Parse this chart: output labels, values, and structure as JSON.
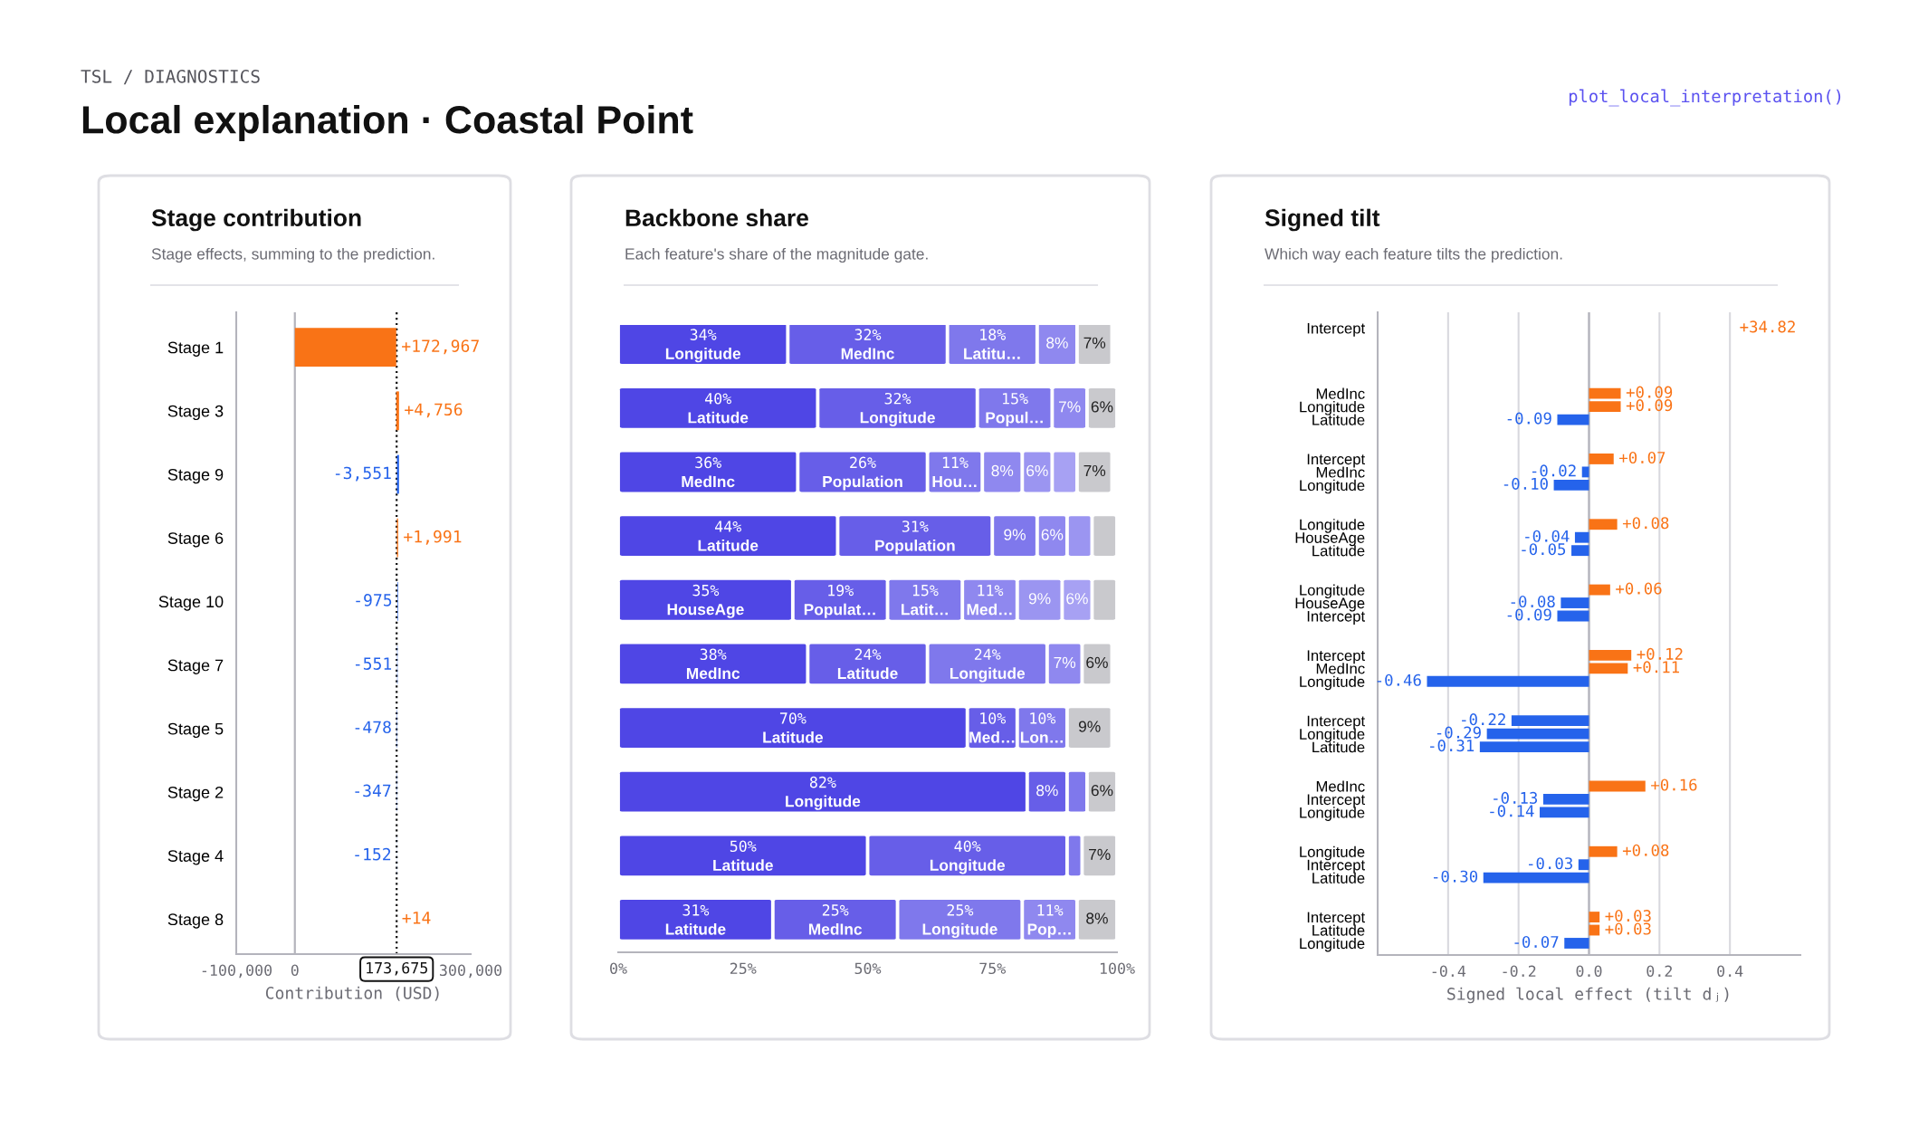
{
  "chart_data": [
    {
      "type": "bar",
      "orientation": "horizontal",
      "title": "Stage contribution",
      "subtitle": "Stage effects, summing to the prediction.",
      "annotations": [
        "TSL / DIAGNOSTICS",
        "Local explanation · Coastal Point",
        "plot_local_interpretation()"
      ],
      "categories": [
        "Stage 1",
        "Stage 3",
        "Stage 9",
        "Stage 6",
        "Stage 10",
        "Stage 7",
        "Stage 5",
        "Stage 2",
        "Stage 4",
        "Stage 8"
      ],
      "values": [
        172967,
        4756,
        -3551,
        1991,
        -975,
        -551,
        -478,
        -347,
        -152,
        14
      ],
      "base": [
        0,
        172967,
        177723,
        174172,
        176163,
        175188,
        174637,
        174159,
        173812,
        173660
      ],
      "colors": [
        "#f97316",
        "#f97316",
        "#2563eb",
        "#f97316",
        "#2563eb",
        "#2563eb",
        "#2563eb",
        "#2563eb",
        "#2563eb",
        "#f97316"
      ],
      "value_labels": [
        "+172,967",
        "+4,756",
        "-3,551",
        "+1,991",
        "-975",
        "-551",
        "-478",
        "-347",
        "-152",
        "+14"
      ],
      "xlim": [
        -100000,
        300000
      ],
      "xticks": [
        {
          "value": -100000,
          "label": "-100,000"
        },
        0,
        {
          "value": 300000,
          "label": "300,000"
        }
      ],
      "xlabel": "Contribution (USD)",
      "ref_lines": [
        {
          "axis": "x",
          "value": 0,
          "color": "#b4b4bc",
          "line_style": "solid"
        },
        {
          "axis": "x",
          "value": 173675,
          "label": "173,675",
          "color": "#111111",
          "line_style": "dotted"
        }
      ]
    },
    {
      "type": "bar",
      "orientation": "horizontal",
      "stacked": true,
      "title": "Backbone share",
      "subtitle": "Each feature's share of the magnitude gate.",
      "categories": [
        null,
        null,
        null,
        null,
        null,
        null,
        null,
        null,
        null,
        null
      ],
      "series": [
        {
          "color": "#4f46e5",
          "values": [
            34,
            40,
            36,
            44,
            35,
            38,
            70,
            82,
            50,
            31
          ],
          "value_labels": [
            "34%\nLongitude",
            "40%\nLatitude",
            "36%\nMedInc",
            "44%\nLatitude",
            "35%\nHouseAge",
            "38%\nMedInc",
            "70%\nLatitude",
            "82%\nLongitude",
            "50%\nLatitude",
            "31%\nLatitude"
          ]
        },
        {
          "color": "#675ee8",
          "values": [
            32,
            32,
            26,
            31,
            19,
            24,
            10,
            8,
            40,
            25
          ],
          "value_labels": [
            "32%\nMedInc",
            "32%\nLongitude",
            "26%\nPopulation",
            "31%\nPopulation",
            "19%\nPopulat…",
            "24%\nLatitude",
            "10%\nMed…",
            "8%",
            "40%\nLongitude",
            "25%\nMedInc"
          ]
        },
        {
          "color": "#7f78ec",
          "values": [
            18,
            15,
            11,
            9,
            15,
            24,
            10,
            4,
            3,
            25
          ],
          "value_labels": [
            "18%\nLatitu…",
            "15%\nPopul…",
            "11%\nHou…",
            "9%",
            "15%\nLatit…",
            "24%\nLongitude",
            "10%\nLon…",
            null,
            null,
            "25%\nLongitude"
          ]
        },
        {
          "color": "#8f88ef",
          "values": [
            8,
            7,
            8,
            6,
            11,
            7,
            null,
            null,
            null,
            11
          ],
          "value_labels": [
            "8%",
            "7%",
            "8%",
            "6%",
            "11%\nMed…",
            "7%",
            null,
            null,
            null,
            "11%\nPop…"
          ]
        },
        {
          "color": "#9b95f1",
          "values": [
            null,
            null,
            6,
            5,
            9,
            null,
            null,
            null,
            null,
            null
          ],
          "value_labels": [
            null,
            null,
            "6%",
            null,
            "9%",
            null,
            null,
            null,
            null,
            null
          ]
        },
        {
          "color": "#a7a1f3",
          "values": [
            null,
            null,
            5,
            null,
            6,
            null,
            null,
            null,
            null,
            null
          ],
          "value_labels": [
            null,
            null,
            null,
            null,
            "6%",
            null,
            null,
            null,
            null,
            null
          ]
        },
        {
          "color": "#c9c9cd",
          "values": [
            7,
            6,
            7,
            5,
            5,
            6,
            9,
            6,
            7,
            8
          ],
          "value_labels": [
            "7%",
            "6%",
            "7%",
            null,
            null,
            "6%",
            "9%",
            "6%",
            "7%",
            "8%"
          ]
        }
      ],
      "xlim": [
        0,
        100
      ],
      "xticks": [
        {
          "value": 0,
          "label": "0%"
        },
        {
          "value": 25,
          "label": "25%"
        },
        {
          "value": 50,
          "label": "50%"
        },
        {
          "value": 75,
          "label": "75%"
        },
        {
          "value": 100,
          "label": "100%"
        }
      ],
      "tick_labels": "x"
    },
    {
      "type": "bar",
      "orientation": "horizontal",
      "title": "Signed tilt",
      "subtitle": "Which way each feature tilts the prediction.",
      "categories": [
        "Intercept",
        null,
        null,
        null,
        null,
        "MedInc",
        "Longitude",
        "Latitude",
        null,
        null,
        "Intercept",
        "MedInc",
        "Longitude",
        null,
        null,
        "Longitude",
        "HouseAge",
        "Latitude",
        null,
        null,
        "Longitude",
        "HouseAge",
        "Intercept",
        null,
        null,
        "Intercept",
        "MedInc",
        "Longitude",
        null,
        null,
        "Intercept",
        "Longitude",
        "Latitude",
        null,
        null,
        "MedInc",
        "Intercept",
        "Longitude",
        null,
        null,
        "Longitude",
        "Intercept",
        "Latitude",
        null,
        null,
        "Intercept",
        "Latitude",
        "Longitude"
      ],
      "values": [
        null,
        null,
        null,
        null,
        null,
        0.09,
        0.09,
        -0.09,
        null,
        null,
        0.07,
        -0.02,
        -0.1,
        null,
        null,
        0.08,
        -0.04,
        -0.05,
        null,
        null,
        0.06,
        -0.08,
        -0.09,
        null,
        null,
        0.12,
        0.11,
        -0.46,
        null,
        null,
        -0.22,
        -0.29,
        -0.31,
        null,
        null,
        0.16,
        -0.13,
        -0.14,
        null,
        null,
        0.08,
        -0.03,
        -0.3,
        null,
        null,
        0.03,
        0.03,
        -0.07
      ],
      "colors": [
        "#f97316",
        null,
        null,
        null,
        null,
        "#f97316",
        "#f97316",
        "#2563eb",
        null,
        null,
        "#f97316",
        "#2563eb",
        "#2563eb",
        null,
        null,
        "#f97316",
        "#2563eb",
        "#2563eb",
        null,
        null,
        "#f97316",
        "#2563eb",
        "#2563eb",
        null,
        null,
        "#f97316",
        "#f97316",
        "#2563eb",
        null,
        null,
        "#2563eb",
        "#2563eb",
        "#2563eb",
        null,
        null,
        "#f97316",
        "#2563eb",
        "#2563eb",
        null,
        null,
        "#f97316",
        "#2563eb",
        "#2563eb",
        null,
        null,
        "#f97316",
        "#f97316",
        "#2563eb"
      ],
      "value_labels": [
        "+34.82",
        null,
        null,
        null,
        null,
        "+0.09",
        "+0.09",
        "-0.09",
        null,
        null,
        "+0.07",
        "-0.02",
        "-0.10",
        null,
        null,
        "+0.08",
        "-0.04",
        "-0.05",
        null,
        null,
        "+0.06",
        "-0.08",
        "-0.09",
        null,
        null,
        "+0.12",
        "+0.11",
        "-0.46",
        null,
        null,
        "-0.22",
        "-0.29",
        "-0.31",
        null,
        null,
        "+0.16",
        "-0.13",
        "-0.14",
        null,
        null,
        "+0.08",
        "-0.03",
        "-0.30",
        null,
        null,
        "+0.03",
        "+0.03",
        "-0.07"
      ],
      "xlim": [
        -0.6,
        0.6
      ],
      "xticks": [
        {
          "value": -0.4,
          "label": "-0.4"
        },
        {
          "value": -0.2,
          "label": "-0.2"
        },
        {
          "value": 0.0,
          "label": "0.0"
        },
        0.2,
        0.4
      ],
      "xlabel": "Signed local effect (tilt dⱼ)",
      "ref_lines": [
        {
          "axis": "x",
          "value": 0,
          "color": "#b4b4bc",
          "line_style": "solid"
        }
      ],
      "grid": "x"
    }
  ]
}
